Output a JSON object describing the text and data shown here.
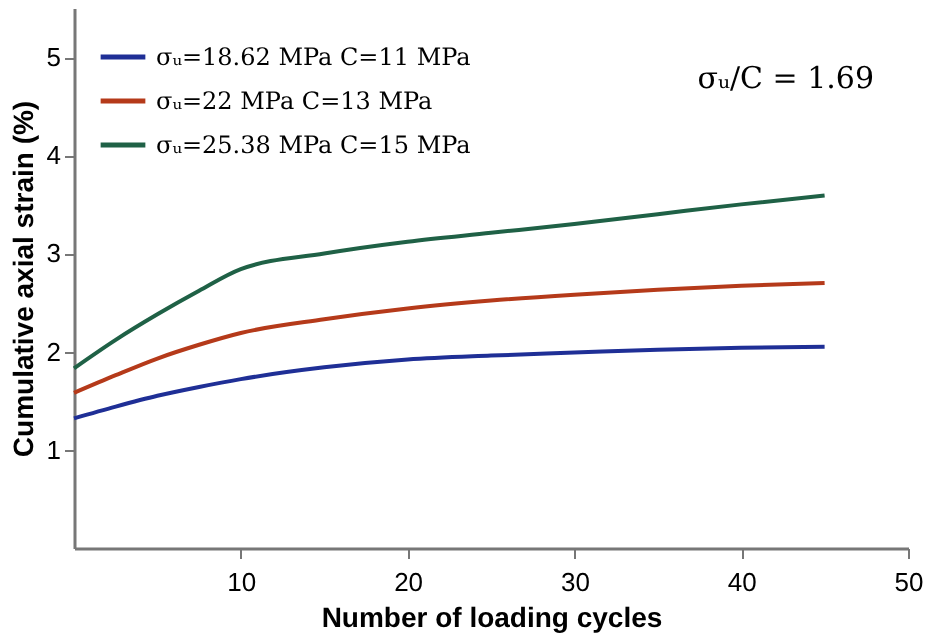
{
  "chart_data": {
    "type": "line",
    "xlabel": "Number of loading cycles",
    "ylabel": "Cumulative axial strain (%)",
    "x": [
      0,
      2.5,
      5,
      7.5,
      10,
      15,
      20,
      25,
      30,
      35,
      40,
      45
    ],
    "series": [
      {
        "name": "σᵤ=18.62 MPa C=11 MPa",
        "color": "#1f2f96",
        "values": [
          1.32,
          1.44,
          1.55,
          1.64,
          1.72,
          1.84,
          1.92,
          1.96,
          1.99,
          2.02,
          2.04,
          2.05
        ]
      },
      {
        "name": "σᵤ=22 MPa C=13 MPa",
        "color": "#b53a1a",
        "values": [
          1.58,
          1.76,
          1.93,
          2.07,
          2.19,
          2.33,
          2.44,
          2.52,
          2.58,
          2.63,
          2.67,
          2.7
        ]
      },
      {
        "name": "σᵤ=25.38 MPa C=15 MPa",
        "color": "#1f6146",
        "values": [
          1.83,
          2.12,
          2.38,
          2.62,
          2.84,
          3.0,
          3.12,
          3.21,
          3.3,
          3.4,
          3.5,
          3.59
        ]
      }
    ],
    "xlim": [
      0,
      50
    ],
    "xticks": [
      10,
      20,
      30,
      40,
      50
    ],
    "ylim": [
      0,
      5.5
    ],
    "yticks": [
      1,
      2,
      3,
      4,
      5
    ],
    "annotations": [
      "σᵤ/C = 1.69"
    ],
    "legend": "top left",
    "grid": false,
    "line_style": "solid",
    "marker": "none"
  }
}
